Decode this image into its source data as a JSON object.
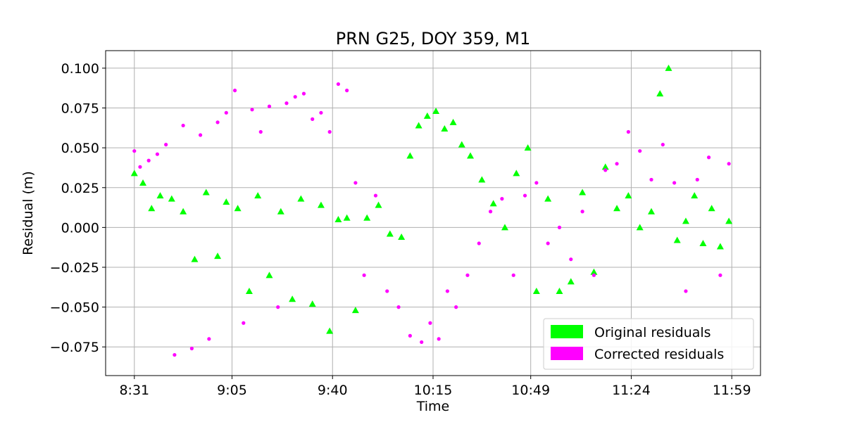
{
  "chart_data": {
    "type": "scatter",
    "title": "PRN G25, DOY 359, M1",
    "xlabel": "Time",
    "ylabel": "Residual (m)",
    "x_ticks": [
      "8:31",
      "9:05",
      "9:40",
      "10:15",
      "10:49",
      "11:24",
      "11:59"
    ],
    "y_ticks": [
      "0.100",
      "0.075",
      "0.050",
      "0.025",
      "0.000",
      "−0.025",
      "−0.050",
      "−0.075"
    ],
    "y_tick_values": [
      0.1,
      0.075,
      0.05,
      0.025,
      0.0,
      -0.025,
      -0.05,
      -0.075
    ],
    "xlim": [
      "8:21",
      "12:09"
    ],
    "ylim": [
      -0.093,
      0.111
    ],
    "grid": true,
    "legend_position": "lower-right",
    "series": [
      {
        "name": "Original residuals",
        "marker": "triangle",
        "color": "#00ff00",
        "x": [
          "8:31",
          "8:34",
          "8:37",
          "8:40",
          "8:44",
          "8:48",
          "8:52",
          "8:56",
          "9:00",
          "9:03",
          "9:07",
          "9:11",
          "9:14",
          "9:18",
          "9:22",
          "9:26",
          "9:29",
          "9:33",
          "9:36",
          "9:39",
          "9:42",
          "9:45",
          "9:48",
          "9:52",
          "9:56",
          "10:00",
          "10:04",
          "10:07",
          "10:10",
          "10:13",
          "10:16",
          "10:19",
          "10:22",
          "10:25",
          "10:28",
          "10:32",
          "10:36",
          "10:40",
          "10:44",
          "10:48",
          "10:51",
          "10:55",
          "10:59",
          "11:03",
          "11:07",
          "11:11",
          "11:15",
          "11:19",
          "11:23",
          "11:27",
          "11:31",
          "11:34",
          "11:37",
          "11:40",
          "11:43",
          "11:46",
          "11:49",
          "11:52",
          "11:55",
          "11:58"
        ],
        "y": [
          0.034,
          0.028,
          0.012,
          0.02,
          0.018,
          0.01,
          -0.02,
          0.022,
          -0.018,
          0.016,
          0.012,
          -0.04,
          0.02,
          -0.03,
          0.01,
          -0.045,
          0.018,
          -0.048,
          0.014,
          -0.065,
          0.005,
          0.006,
          -0.052,
          0.006,
          0.014,
          -0.004,
          -0.006,
          0.045,
          0.064,
          0.07,
          0.073,
          0.062,
          0.066,
          0.052,
          0.045,
          0.03,
          0.015,
          0.0,
          0.034,
          0.05,
          -0.04,
          0.018,
          -0.04,
          -0.034,
          0.022,
          -0.028,
          0.038,
          0.012,
          0.02,
          0.0,
          0.01,
          0.084,
          0.1,
          -0.008,
          0.004,
          0.02,
          -0.01,
          0.012,
          -0.012,
          0.004
        ]
      },
      {
        "name": "Corrected residuals",
        "marker": "circle",
        "color": "#ff00ff",
        "x": [
          "8:31",
          "8:33",
          "8:36",
          "8:39",
          "8:42",
          "8:45",
          "8:48",
          "8:51",
          "8:54",
          "8:57",
          "9:00",
          "9:03",
          "9:06",
          "9:09",
          "9:12",
          "9:15",
          "9:18",
          "9:21",
          "9:24",
          "9:27",
          "9:30",
          "9:33",
          "9:36",
          "9:39",
          "9:42",
          "9:45",
          "9:48",
          "9:51",
          "9:55",
          "9:59",
          "10:03",
          "10:07",
          "10:11",
          "10:14",
          "10:17",
          "10:20",
          "10:23",
          "10:27",
          "10:31",
          "10:35",
          "10:39",
          "10:43",
          "10:47",
          "10:51",
          "10:55",
          "10:59",
          "11:03",
          "11:07",
          "11:11",
          "11:15",
          "11:19",
          "11:23",
          "11:27",
          "11:31",
          "11:35",
          "11:39",
          "11:43",
          "11:47",
          "11:51",
          "11:55",
          "11:58"
        ],
        "y": [
          0.048,
          0.038,
          0.042,
          0.046,
          0.052,
          -0.08,
          0.064,
          -0.076,
          0.058,
          -0.07,
          0.066,
          0.072,
          0.086,
          -0.06,
          0.074,
          0.06,
          0.076,
          -0.05,
          0.078,
          0.082,
          0.084,
          0.068,
          0.072,
          0.06,
          0.09,
          0.086,
          0.028,
          -0.03,
          0.02,
          -0.04,
          -0.05,
          -0.068,
          -0.072,
          -0.06,
          -0.07,
          -0.04,
          -0.05,
          -0.03,
          -0.01,
          0.01,
          0.018,
          -0.03,
          0.02,
          0.028,
          -0.01,
          0.0,
          -0.02,
          0.01,
          -0.03,
          0.036,
          0.04,
          0.06,
          0.048,
          0.03,
          0.052,
          0.028,
          -0.04,
          0.03,
          0.044,
          -0.03,
          0.04
        ]
      }
    ]
  }
}
